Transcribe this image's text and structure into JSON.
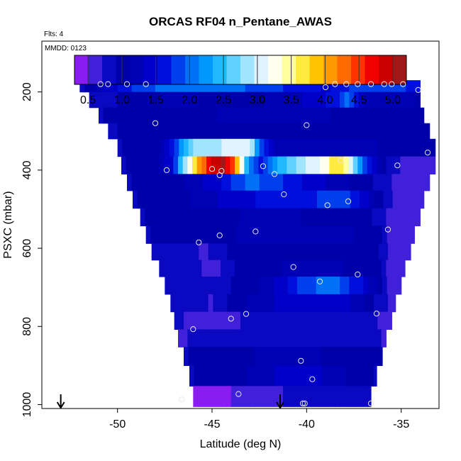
{
  "chart_data": {
    "type": "heatmap",
    "title": "ORCAS RF04 n_Pentane_AWAS",
    "corner_top": "Flts: 4",
    "corner_inner": "MMDD: 0123",
    "xlabel": "Latitude (deg N)",
    "ylabel": "PSXC (mbar)",
    "xlim": [
      -54,
      -33
    ],
    "ylim": [
      1010,
      70
    ],
    "x_ticks": [
      -50,
      -45,
      -40,
      -35
    ],
    "x_tick_labels": [
      "-50",
      "-45",
      "-40",
      "-35"
    ],
    "y_ticks": [
      200,
      400,
      600,
      800,
      1000
    ],
    "y_tick_labels": [
      "200",
      "400",
      "600",
      "800",
      "1000"
    ],
    "colorbar": {
      "min": 0.3,
      "max": 5.2,
      "ticks": [
        0.5,
        1.0,
        1.5,
        2.0,
        2.5,
        3.0,
        3.5,
        4.0,
        4.5,
        5.0
      ],
      "tick_labels": [
        "0.5",
        "1.0",
        "1.5",
        "2.0",
        "2.5",
        "3.0",
        "3.5",
        "4.0",
        "4.5",
        "5.0"
      ],
      "colors": [
        "#8a1cf0",
        "#4020d8",
        "#0a08c0",
        "#0000a8",
        "#0000b4",
        "#0000c8",
        "#0010dc",
        "#0040ec",
        "#0070f6",
        "#0098fc",
        "#20b8ff",
        "#60d0ff",
        "#a0e4ff",
        "#e0f4ff",
        "#fffff0",
        "#ffffa0",
        "#ffea40",
        "#ffc400",
        "#ff9800",
        "#ff6a00",
        "#ff3200",
        "#f00000",
        "#c80000",
        "#a01818"
      ]
    },
    "bands": [
      {
        "p": 180,
        "xmin": -52.0,
        "xmax": -34.0,
        "values": [
          [
            -52,
            0.8
          ],
          [
            -50.5,
            1.4
          ],
          [
            -49,
            1.8
          ],
          [
            -47,
            2.1
          ],
          [
            -44,
            2.0
          ],
          [
            -41,
            1.7
          ],
          [
            -39,
            1.5
          ],
          [
            -37.5,
            1.8
          ],
          [
            -36,
            1.9
          ],
          [
            -34,
            1.6
          ]
        ]
      },
      {
        "p": 220,
        "xmin": -51.5,
        "xmax": -34.0,
        "values": [
          [
            -51.5,
            0.8
          ],
          [
            -49,
            1.0
          ],
          [
            -47,
            1.2
          ],
          [
            -44,
            1.0
          ],
          [
            -41,
            1.2
          ],
          [
            -38.5,
            1.6
          ],
          [
            -37.8,
            2.1
          ],
          [
            -37,
            1.3
          ],
          [
            -35,
            1.2
          ],
          [
            -34,
            1.1
          ]
        ]
      },
      {
        "p": 260,
        "xmin": -51.0,
        "xmax": -33.8,
        "values": [
          [
            -51,
            0.9
          ],
          [
            -48,
            1.0
          ],
          [
            -45,
            1.1
          ],
          [
            -42,
            1.3
          ],
          [
            -40,
            1.2
          ],
          [
            -37,
            1.0
          ],
          [
            -34,
            1.1
          ]
        ]
      },
      {
        "p": 300,
        "xmin": -50.5,
        "xmax": -33.5,
        "values": [
          [
            -50.5,
            0.9
          ],
          [
            -47,
            1.0
          ],
          [
            -44,
            1.0
          ],
          [
            -41,
            1.1
          ],
          [
            -38,
            1.0
          ],
          [
            -35,
            1.0
          ],
          [
            -33.5,
            1.0
          ]
        ]
      },
      {
        "p": 340,
        "xmin": -50.0,
        "xmax": -33.2,
        "values": [
          [
            -50,
            0.9
          ],
          [
            -48,
            1.0
          ],
          [
            -47,
            1.8
          ],
          [
            -46,
            2.8
          ],
          [
            -43,
            3.1
          ],
          [
            -42.5,
            2.0
          ],
          [
            -41.5,
            1.2
          ],
          [
            -38,
            1.3
          ],
          [
            -35,
            1.0
          ],
          [
            -33.2,
            1.1
          ]
        ]
      },
      {
        "p": 390,
        "xmin": -49.8,
        "xmax": -33.2,
        "values": [
          [
            -49.8,
            0.9
          ],
          [
            -48,
            1.0
          ],
          [
            -47,
            1.6
          ],
          [
            -46.5,
            2.8
          ],
          [
            -46,
            3.6
          ],
          [
            -45.5,
            4.2
          ],
          [
            -45,
            4.8
          ],
          [
            -44.5,
            5.1
          ],
          [
            -44,
            4.6
          ],
          [
            -43.5,
            3.4
          ],
          [
            -43,
            2.0
          ],
          [
            -42.5,
            1.6
          ],
          [
            -41.5,
            2.4
          ],
          [
            -40,
            3.0
          ],
          [
            -39,
            3.2
          ],
          [
            -38.5,
            3.8
          ],
          [
            -38,
            3.6
          ],
          [
            -37.5,
            2.8
          ],
          [
            -37,
            2.0
          ],
          [
            -36,
            1.0
          ],
          [
            -35,
            0.7
          ],
          [
            -33.2,
            0.6
          ]
        ]
      },
      {
        "p": 430,
        "xmin": -49.5,
        "xmax": -33.5,
        "values": [
          [
            -49.5,
            0.9
          ],
          [
            -47,
            1.0
          ],
          [
            -45,
            1.4
          ],
          [
            -43,
            2.0
          ],
          [
            -41,
            1.7
          ],
          [
            -39,
            1.3
          ],
          [
            -37,
            1.0
          ],
          [
            -35.5,
            0.7
          ],
          [
            -34,
            0.6
          ]
        ]
      },
      {
        "p": 475,
        "xmin": -49.2,
        "xmax": -33.8,
        "values": [
          [
            -49.2,
            0.9
          ],
          [
            -47,
            1.0
          ],
          [
            -45,
            1.3
          ],
          [
            -43,
            1.5
          ],
          [
            -40,
            1.7
          ],
          [
            -38,
            1.8
          ],
          [
            -36.5,
            1.2
          ],
          [
            -35.5,
            0.7
          ],
          [
            -34,
            0.6
          ]
        ]
      },
      {
        "p": 520,
        "xmin": -48.8,
        "xmax": -34.0,
        "values": [
          [
            -48.8,
            0.9
          ],
          [
            -46,
            1.0
          ],
          [
            -44,
            1.1
          ],
          [
            -42,
            1.2
          ],
          [
            -40,
            1.1
          ],
          [
            -37,
            1.0
          ],
          [
            -35.5,
            0.6
          ],
          [
            -34,
            0.6
          ]
        ]
      },
      {
        "p": 565,
        "xmin": -48.5,
        "xmax": -34.3,
        "values": [
          [
            -48.5,
            0.9
          ],
          [
            -46,
            1.0
          ],
          [
            -44,
            1.1
          ],
          [
            -41,
            1.3
          ],
          [
            -38,
            1.2
          ],
          [
            -36,
            0.9
          ],
          [
            -35.5,
            0.6
          ],
          [
            -34.3,
            0.6
          ]
        ]
      },
      {
        "p": 610,
        "xmin": -48.2,
        "xmax": -34.5,
        "values": [
          [
            -48.2,
            0.9
          ],
          [
            -46,
            0.8
          ],
          [
            -45.5,
            0.6
          ],
          [
            -44.5,
            0.9
          ],
          [
            -42,
            1.0
          ],
          [
            -40,
            1.0
          ],
          [
            -38,
            1.0
          ],
          [
            -36,
            0.9
          ],
          [
            -35.5,
            0.6
          ],
          [
            -34.5,
            0.6
          ]
        ]
      },
      {
        "p": 650,
        "xmin": -47.8,
        "xmax": -34.8,
        "values": [
          [
            -47.8,
            0.9
          ],
          [
            -46,
            0.8
          ],
          [
            -45,
            0.6
          ],
          [
            -44,
            0.9
          ],
          [
            -42,
            1.0
          ],
          [
            -40,
            1.3
          ],
          [
            -38,
            1.1
          ],
          [
            -36,
            0.9
          ],
          [
            -35.5,
            0.6
          ],
          [
            -34.8,
            0.6
          ]
        ]
      },
      {
        "p": 695,
        "xmin": -47.5,
        "xmax": -35.0,
        "values": [
          [
            -47.5,
            0.9
          ],
          [
            -45.5,
            0.9
          ],
          [
            -44,
            0.9
          ],
          [
            -42,
            1.2
          ],
          [
            -40,
            1.9
          ],
          [
            -38.5,
            2.0
          ],
          [
            -37,
            1.5
          ],
          [
            -36,
            0.9
          ],
          [
            -35.5,
            0.6
          ],
          [
            -35,
            0.6
          ]
        ]
      },
      {
        "p": 740,
        "xmin": -47.2,
        "xmax": -35.3,
        "values": [
          [
            -47.2,
            0.9
          ],
          [
            -46,
            0.8
          ],
          [
            -45,
            0.7
          ],
          [
            -44,
            1.0
          ],
          [
            -41,
            1.4
          ],
          [
            -39,
            1.5
          ],
          [
            -37.5,
            1.3
          ],
          [
            -36,
            0.8
          ],
          [
            -35.3,
            0.6
          ]
        ]
      },
      {
        "p": 785,
        "xmin": -47.0,
        "xmax": -35.5,
        "values": [
          [
            -47,
            0.8
          ],
          [
            -46,
            0.6
          ],
          [
            -45,
            0.5
          ],
          [
            -43.5,
            0.7
          ],
          [
            -42,
            0.9
          ],
          [
            -39,
            0.9
          ],
          [
            -36.5,
            0.9
          ],
          [
            -36,
            0.6
          ],
          [
            -35.5,
            0.6
          ]
        ]
      },
      {
        "p": 830,
        "xmin": -46.8,
        "xmax": -35.8,
        "values": [
          [
            -46.8,
            0.6
          ],
          [
            -45.5,
            0.9
          ],
          [
            -43,
            0.9
          ],
          [
            -40,
            0.9
          ],
          [
            -37,
            0.9
          ],
          [
            -36,
            0.7
          ],
          [
            -35.8,
            0.6
          ]
        ]
      },
      {
        "p": 875,
        "xmin": -46.5,
        "xmax": -36.0,
        "values": [
          [
            -46.5,
            0.9
          ],
          [
            -45,
            1.0
          ],
          [
            -43,
            1.1
          ],
          [
            -41,
            1.2
          ],
          [
            -39,
            1.1
          ],
          [
            -37,
            1.0
          ],
          [
            -36,
            1.0
          ]
        ]
      },
      {
        "p": 925,
        "xmin": -46.2,
        "xmax": -36.3,
        "values": [
          [
            -46.2,
            0.9
          ],
          [
            -44,
            1.0
          ],
          [
            -42,
            1.3
          ],
          [
            -40,
            1.5
          ],
          [
            -38.5,
            1.2
          ],
          [
            -37,
            1.0
          ],
          [
            -36.3,
            0.9
          ]
        ]
      },
      {
        "p": 980,
        "xmin": -46.0,
        "xmax": -36.6,
        "values": [
          [
            -46,
            0.5
          ],
          [
            -44,
            0.5
          ],
          [
            -42,
            0.6
          ],
          [
            -41.5,
            0.6
          ],
          [
            -40.5,
            0.9
          ],
          [
            -38,
            0.9
          ],
          [
            -36.6,
            0.9
          ]
        ]
      }
    ],
    "points": [
      [
        -50.9,
        180
      ],
      [
        -50.5,
        180
      ],
      [
        -49.5,
        180
      ],
      [
        -48.5,
        180
      ],
      [
        -39.0,
        188
      ],
      [
        -38.5,
        180
      ],
      [
        -37.9,
        180
      ],
      [
        -37.3,
        180
      ],
      [
        -36.6,
        180
      ],
      [
        -35.9,
        180
      ],
      [
        -35.5,
        180
      ],
      [
        -34.9,
        180
      ],
      [
        -34.1,
        195
      ],
      [
        -48.0,
        280
      ],
      [
        -40.0,
        285
      ],
      [
        -33.6,
        355
      ],
      [
        -47.4,
        400
      ],
      [
        -45.0,
        397
      ],
      [
        -44.5,
        402
      ],
      [
        -42.3,
        390
      ],
      [
        -41.7,
        410
      ],
      [
        -44.6,
        413
      ],
      [
        -38.2,
        375
      ],
      [
        -35.2,
        388
      ],
      [
        -41.2,
        462
      ],
      [
        -38.9,
        490
      ],
      [
        -37.8,
        480
      ],
      [
        -45.7,
        585
      ],
      [
        -44.6,
        567
      ],
      [
        -42.7,
        557
      ],
      [
        -35.7,
        552
      ],
      [
        -40.7,
        648
      ],
      [
        -39.3,
        685
      ],
      [
        -37.3,
        667
      ],
      [
        -46.0,
        807
      ],
      [
        -44.0,
        780
      ],
      [
        -43.2,
        768
      ],
      [
        -36.3,
        767
      ],
      [
        -40.3,
        888
      ],
      [
        -39.7,
        935
      ],
      [
        -46.6,
        987
      ],
      [
        -43.6,
        973
      ],
      [
        -40.2,
        997
      ],
      [
        -40.1,
        997
      ],
      [
        -36.6,
        997
      ]
    ],
    "arrows": [
      -53.0,
      -41.4
    ]
  }
}
